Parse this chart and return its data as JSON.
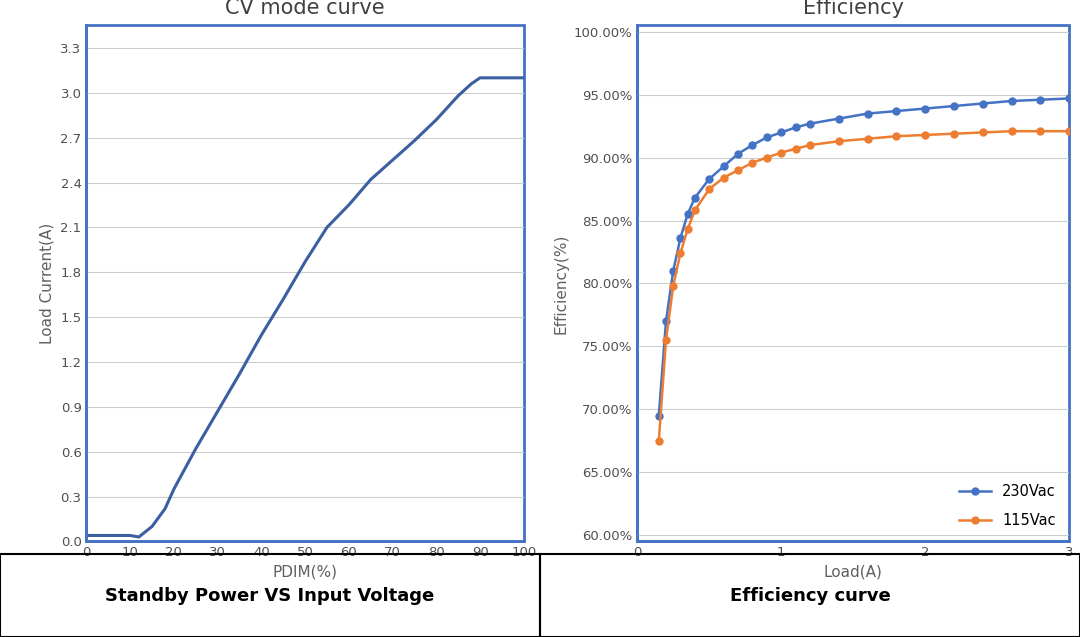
{
  "left_title": "CV mode curve",
  "left_xlabel": "PDIM(%)",
  "left_ylabel": "Load Current(A)",
  "left_xticks": [
    0,
    10,
    20,
    30,
    40,
    50,
    60,
    70,
    80,
    90,
    100
  ],
  "left_yticks": [
    0,
    0.3,
    0.6,
    0.9,
    1.2,
    1.5,
    1.8,
    2.1,
    2.4,
    2.7,
    3.0,
    3.3
  ],
  "left_xlim": [
    0,
    100
  ],
  "left_ylim": [
    0,
    3.45
  ],
  "left_caption": "Standby Power VS Input Voltage",
  "cv_x": [
    0,
    2,
    5,
    8,
    10,
    12,
    15,
    18,
    20,
    25,
    30,
    35,
    40,
    45,
    50,
    55,
    60,
    65,
    70,
    75,
    80,
    85,
    88,
    90,
    92,
    95,
    100
  ],
  "cv_y": [
    0.04,
    0.04,
    0.04,
    0.04,
    0.04,
    0.03,
    0.1,
    0.22,
    0.35,
    0.62,
    0.87,
    1.12,
    1.38,
    1.62,
    1.87,
    2.1,
    2.25,
    2.42,
    2.55,
    2.68,
    2.82,
    2.98,
    3.06,
    3.1,
    3.1,
    3.1,
    3.1
  ],
  "cv_color": "#3b5fa0",
  "right_title": "Efficiency",
  "right_xlabel": "Load(A)",
  "right_ylabel": "Efficiency(%)",
  "right_xticks": [
    0,
    1,
    2,
    3
  ],
  "right_ytick_vals": [
    0.6,
    0.65,
    0.7,
    0.75,
    0.8,
    0.85,
    0.9,
    0.95,
    1.0
  ],
  "right_ytick_labels": [
    "60.00%",
    "65.00%",
    "70.00%",
    "75.00%",
    "80.00%",
    "85.00%",
    "90.00%",
    "95.00%",
    "100.00%"
  ],
  "right_xlim": [
    0,
    3.0
  ],
  "right_ylim": [
    0.595,
    1.005
  ],
  "right_caption": "Efficiency curve",
  "eff_load_230": [
    0.15,
    0.2,
    0.25,
    0.3,
    0.35,
    0.4,
    0.5,
    0.6,
    0.7,
    0.8,
    0.9,
    1.0,
    1.1,
    1.2,
    1.4,
    1.6,
    1.8,
    2.0,
    2.2,
    2.4,
    2.6,
    2.8,
    3.0
  ],
  "eff_val_230": [
    0.695,
    0.77,
    0.81,
    0.836,
    0.855,
    0.868,
    0.883,
    0.893,
    0.903,
    0.91,
    0.916,
    0.92,
    0.924,
    0.927,
    0.931,
    0.935,
    0.937,
    0.939,
    0.941,
    0.943,
    0.945,
    0.946,
    0.947
  ],
  "eff_load_115": [
    0.15,
    0.2,
    0.25,
    0.3,
    0.35,
    0.4,
    0.5,
    0.6,
    0.7,
    0.8,
    0.9,
    1.0,
    1.1,
    1.2,
    1.4,
    1.6,
    1.8,
    2.0,
    2.2,
    2.4,
    2.6,
    2.8,
    3.0
  ],
  "eff_val_115": [
    0.675,
    0.755,
    0.798,
    0.824,
    0.843,
    0.858,
    0.875,
    0.884,
    0.89,
    0.896,
    0.9,
    0.904,
    0.907,
    0.91,
    0.913,
    0.915,
    0.917,
    0.918,
    0.919,
    0.92,
    0.921,
    0.921,
    0.921
  ],
  "color_230": "#4472c4",
  "color_115": "#ed7d31",
  "border_color": "#4472c4",
  "bg_color": "#ffffff",
  "caption_bg": "#d4d4d4",
  "caption_border": "#000000"
}
